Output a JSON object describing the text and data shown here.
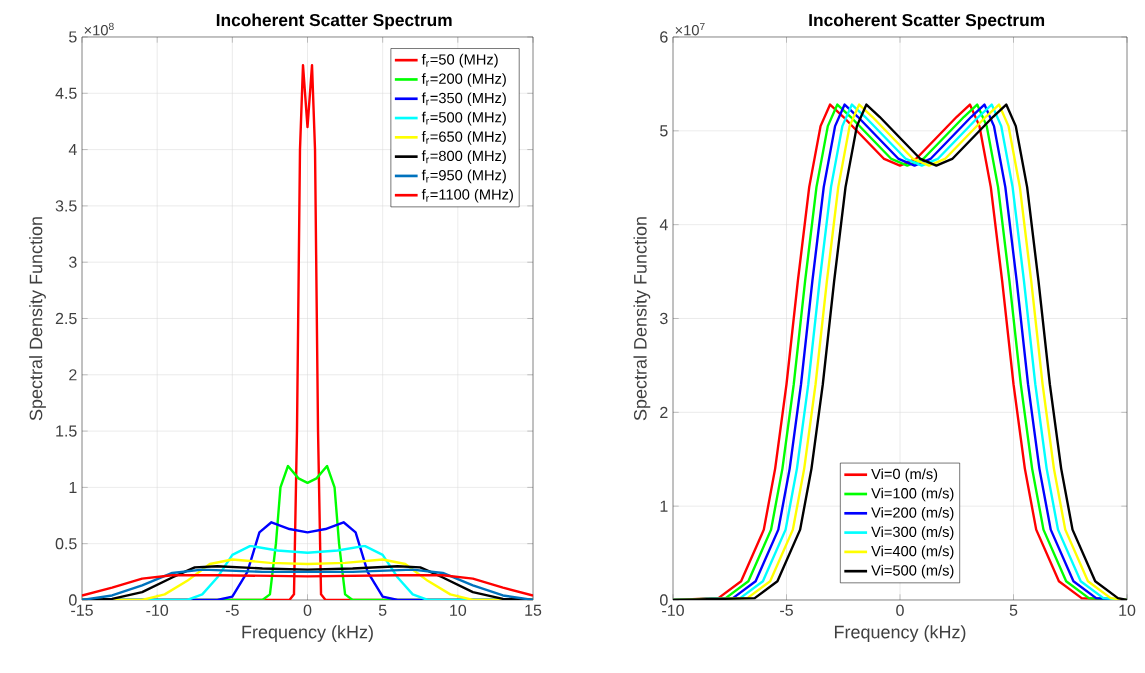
{
  "chart_data": [
    {
      "type": "line",
      "title": "Incoherent Scatter Spectrum",
      "xlabel": "Frequency (kHz)",
      "ylabel": "Spectral Density Function",
      "annotations": [
        "×10$^{8}$"
      ],
      "xlim": [
        -15,
        15
      ],
      "ylim": [
        0,
        5
      ],
      "xticks": [
        -15,
        -10,
        -5,
        0,
        5,
        10,
        15
      ],
      "yticks": [
        0,
        0.5,
        1,
        1.5,
        2,
        2.5,
        3,
        3.5,
        4,
        4.5,
        5
      ],
      "grid": true,
      "legend": "top right",
      "series": [
        {
          "name": "f$_{r}$=50 (MHz)",
          "color": "#ff0000",
          "x": [
            -15,
            -1.2,
            -0.9,
            -0.7,
            -0.5,
            -0.3,
            0,
            0.3,
            0.5,
            0.7,
            0.9,
            1.2,
            15
          ],
          "values": [
            0,
            0,
            0.05,
            1.5,
            4.0,
            4.75,
            4.2,
            4.75,
            4.0,
            1.5,
            0.05,
            0,
            0
          ]
        },
        {
          "name": "f$_{r}$=200 (MHz)",
          "color": "#00ff00",
          "x": [
            -15,
            -3,
            -2.5,
            -2.1,
            -1.8,
            -1.3,
            -0.6,
            0,
            0.6,
            1.3,
            1.8,
            2.1,
            2.5,
            3,
            15
          ],
          "values": [
            0,
            0,
            0.05,
            0.5,
            1.0,
            1.19,
            1.08,
            1.04,
            1.08,
            1.19,
            1.0,
            0.5,
            0.05,
            0,
            0
          ]
        },
        {
          "name": "f$_{r}$=350 (MHz)",
          "color": "#0000ff",
          "x": [
            -15,
            -6,
            -5,
            -4,
            -3.2,
            -2.4,
            -1.2,
            0,
            1.2,
            2.4,
            3.2,
            4,
            5,
            6,
            15
          ],
          "values": [
            0,
            0,
            0.03,
            0.25,
            0.6,
            0.69,
            0.63,
            0.6,
            0.63,
            0.69,
            0.6,
            0.25,
            0.03,
            0,
            0
          ]
        },
        {
          "name": "f$_{r}$=500 (MHz)",
          "color": "#00ffff",
          "x": [
            -15,
            -8,
            -7,
            -6,
            -5,
            -3.8,
            -2,
            0,
            2,
            3.8,
            5,
            6,
            7,
            8,
            15
          ],
          "values": [
            0,
            0,
            0.05,
            0.2,
            0.4,
            0.48,
            0.44,
            0.42,
            0.44,
            0.48,
            0.4,
            0.2,
            0.05,
            0,
            0
          ]
        },
        {
          "name": "f$_{r}$=650 (MHz)",
          "color": "#ffff00",
          "x": [
            -15,
            -11,
            -9.5,
            -8,
            -6.5,
            -5,
            -2.5,
            0,
            2.5,
            5,
            6.5,
            8,
            9.5,
            11,
            15
          ],
          "values": [
            0,
            0,
            0.05,
            0.17,
            0.32,
            0.36,
            0.33,
            0.32,
            0.33,
            0.36,
            0.32,
            0.17,
            0.05,
            0,
            0
          ]
        },
        {
          "name": "f$_{r}$=800 (MHz)",
          "color": "#000000",
          "x": [
            -15,
            -13,
            -11,
            -9,
            -7.5,
            -6,
            -3,
            0,
            3,
            6,
            7.5,
            9,
            11,
            13,
            15
          ],
          "values": [
            0,
            0.01,
            0.07,
            0.2,
            0.29,
            0.3,
            0.28,
            0.27,
            0.28,
            0.3,
            0.29,
            0.2,
            0.07,
            0.01,
            0
          ]
        },
        {
          "name": "f$_{r}$=950 (MHz)",
          "color": "#0072bd",
          "x": [
            -15,
            -13,
            -11,
            -9,
            -7,
            -3,
            0,
            3,
            7,
            9,
            11,
            13,
            15
          ],
          "values": [
            0,
            0.04,
            0.13,
            0.24,
            0.27,
            0.25,
            0.25,
            0.25,
            0.27,
            0.24,
            0.13,
            0.04,
            0
          ]
        },
        {
          "name": "f$_{r}$=1100 (MHz)",
          "color": "#ff0000",
          "x": [
            -15,
            -13,
            -11,
            -9,
            -6,
            0,
            6,
            9,
            11,
            13,
            15
          ],
          "values": [
            0.04,
            0.11,
            0.19,
            0.22,
            0.22,
            0.21,
            0.22,
            0.22,
            0.19,
            0.11,
            0.04
          ]
        }
      ]
    },
    {
      "type": "line",
      "title": "Incoherent Scatter Spectrum",
      "xlabel": "Frequency (kHz)",
      "ylabel": "Spectral Density Function",
      "annotations": [
        "×10$^{7}$"
      ],
      "xlim": [
        -10,
        10
      ],
      "ylim": [
        0,
        6
      ],
      "xticks": [
        -10,
        -5,
        0,
        5,
        10
      ],
      "yticks": [
        0,
        1,
        2,
        3,
        4,
        5,
        6
      ],
      "grid": true,
      "legend": "bottom",
      "series": [
        {
          "name": "Vi=0 (m/s)",
          "color": "#ff0000",
          "x": [
            -10,
            -8,
            -7,
            -6,
            -5.5,
            -5,
            -4.5,
            -4,
            -3.5,
            -3.08,
            -2.5,
            -1.5,
            -0.7,
            0,
            0.7,
            1.5,
            2.5,
            3.08,
            3.5,
            4,
            4.5,
            5,
            5.5,
            6,
            7,
            8,
            10
          ],
          "values": [
            0,
            0.02,
            0.2,
            0.75,
            1.4,
            2.3,
            3.4,
            4.4,
            5.05,
            5.28,
            5.15,
            4.9,
            4.7,
            4.63,
            4.7,
            4.9,
            5.15,
            5.28,
            5.05,
            4.4,
            3.4,
            2.3,
            1.4,
            0.75,
            0.2,
            0.02,
            0
          ]
        },
        {
          "name": "Vi=100 (m/s)",
          "color": "#00ff00",
          "x": [
            -10,
            -7.68,
            -6.68,
            -5.68,
            -5.18,
            -4.68,
            -4.18,
            -3.68,
            -3.18,
            -2.76,
            -2.18,
            -1.18,
            -0.38,
            0.32,
            1.02,
            1.82,
            2.82,
            3.4,
            3.82,
            4.32,
            4.82,
            5.32,
            5.82,
            6.32,
            7.32,
            8.32,
            10
          ],
          "values": [
            0,
            0.02,
            0.2,
            0.75,
            1.4,
            2.3,
            3.4,
            4.4,
            5.05,
            5.28,
            5.15,
            4.9,
            4.7,
            4.63,
            4.7,
            4.9,
            5.15,
            5.28,
            5.05,
            4.4,
            3.4,
            2.3,
            1.4,
            0.75,
            0.2,
            0.02,
            0
          ]
        },
        {
          "name": "Vi=200 (m/s)",
          "color": "#0000ff",
          "x": [
            -10,
            -7.36,
            -6.36,
            -5.36,
            -4.86,
            -4.36,
            -3.86,
            -3.36,
            -2.86,
            -2.44,
            -1.86,
            -0.86,
            -0.06,
            0.64,
            1.34,
            2.14,
            3.14,
            3.72,
            4.14,
            4.64,
            5.14,
            5.64,
            6.14,
            6.64,
            7.64,
            8.64,
            10
          ],
          "values": [
            0,
            0.02,
            0.2,
            0.75,
            1.4,
            2.3,
            3.4,
            4.4,
            5.05,
            5.28,
            5.15,
            4.9,
            4.7,
            4.63,
            4.7,
            4.9,
            5.15,
            5.28,
            5.05,
            4.4,
            3.4,
            2.3,
            1.4,
            0.75,
            0.2,
            0.02,
            0
          ]
        },
        {
          "name": "Vi=300 (m/s)",
          "color": "#00ffff",
          "x": [
            -10,
            -7.04,
            -6.04,
            -5.04,
            -4.54,
            -4.04,
            -3.54,
            -3.04,
            -2.54,
            -2.12,
            -1.54,
            -0.54,
            0.26,
            0.96,
            1.66,
            2.46,
            3.46,
            4.04,
            4.46,
            4.96,
            5.46,
            5.96,
            6.46,
            6.96,
            7.96,
            8.96,
            10
          ],
          "values": [
            0,
            0.02,
            0.2,
            0.75,
            1.4,
            2.3,
            3.4,
            4.4,
            5.05,
            5.28,
            5.15,
            4.9,
            4.7,
            4.63,
            4.7,
            4.9,
            5.15,
            5.28,
            5.05,
            4.4,
            3.4,
            2.3,
            1.4,
            0.75,
            0.2,
            0.02,
            0
          ]
        },
        {
          "name": "Vi=400 (m/s)",
          "color": "#ffff00",
          "x": [
            -10,
            -6.72,
            -5.72,
            -4.72,
            -4.22,
            -3.72,
            -3.22,
            -2.72,
            -2.22,
            -1.8,
            -1.22,
            -0.22,
            0.58,
            1.28,
            1.98,
            2.78,
            3.78,
            4.36,
            4.78,
            5.28,
            5.78,
            6.28,
            6.78,
            7.28,
            8.28,
            9.28,
            10
          ],
          "values": [
            0,
            0.02,
            0.2,
            0.75,
            1.4,
            2.3,
            3.4,
            4.4,
            5.05,
            5.28,
            5.15,
            4.9,
            4.7,
            4.63,
            4.7,
            4.9,
            5.15,
            5.28,
            5.05,
            4.4,
            3.4,
            2.3,
            1.4,
            0.75,
            0.2,
            0.02,
            0
          ]
        },
        {
          "name": "Vi=500 (m/s)",
          "color": "#000000",
          "x": [
            -10,
            -6.4,
            -5.4,
            -4.4,
            -3.9,
            -3.4,
            -2.9,
            -2.4,
            -1.9,
            -1.48,
            -0.9,
            0.1,
            0.9,
            1.6,
            2.3,
            3.1,
            4.1,
            4.68,
            5.1,
            5.6,
            6.1,
            6.6,
            7.1,
            7.6,
            8.6,
            9.6,
            10
          ],
          "values": [
            0,
            0.02,
            0.2,
            0.75,
            1.4,
            2.3,
            3.4,
            4.4,
            5.05,
            5.28,
            5.15,
            4.9,
            4.7,
            4.63,
            4.7,
            4.9,
            5.15,
            5.28,
            5.05,
            4.4,
            3.4,
            2.3,
            1.4,
            0.75,
            0.2,
            0.02,
            0
          ]
        }
      ]
    }
  ]
}
